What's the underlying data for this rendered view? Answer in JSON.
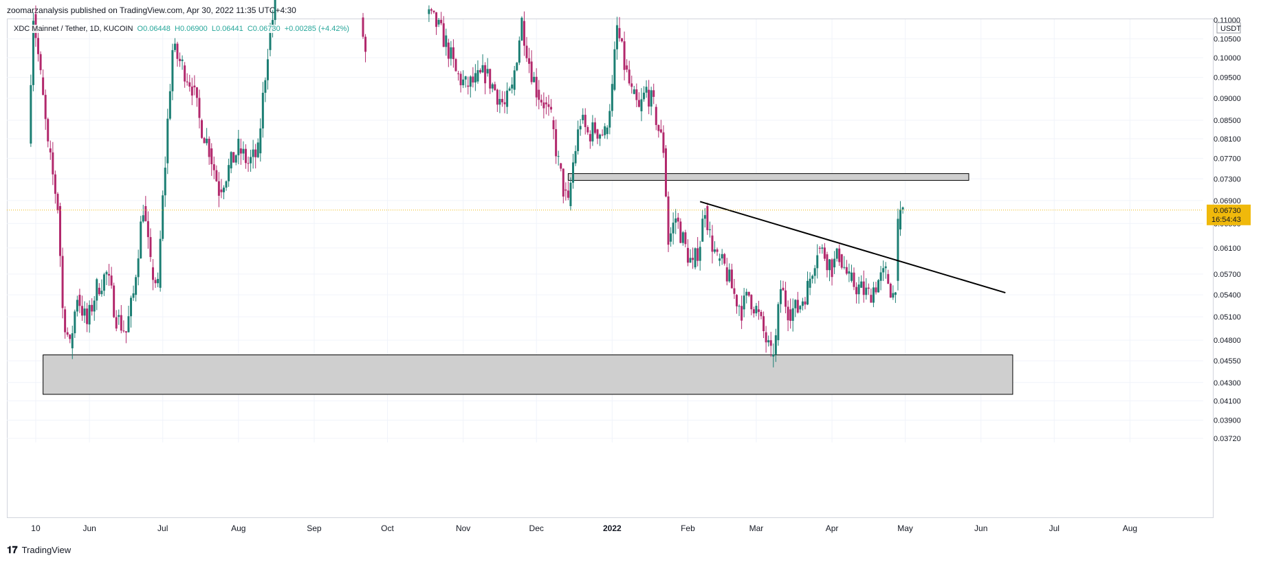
{
  "header": {
    "published_by": "zoomarzanalysis published on TradingView.com, Apr 30, 2022 11:35 UTC+4:30"
  },
  "legend": {
    "symbol": "XDC Mainnet / Tether, 1D, KUCOIN",
    "open": "O0.06448",
    "high": "H0.06900",
    "low": "L0.06441",
    "close": "C0.06730",
    "change": "+0.00285 (+4.42%)"
  },
  "footer": {
    "brand": "TradingView"
  },
  "colors": {
    "up": "#26a69a",
    "down": "#ef5350",
    "up_body": "#1b7e73",
    "down_body": "#b2286c",
    "grid": "#f0f3fa",
    "zone_fill": "#cfcfcf",
    "last_price": "#f0b90b"
  },
  "chart_data": {
    "type": "candlestick",
    "quote_unit": "USDT",
    "y_axis": {
      "scale": "log",
      "ticks": [
        "0.10500",
        "0.10000",
        "0.09500",
        "0.09000",
        "0.08500",
        "0.08100",
        "0.07700",
        "0.07300",
        "0.06900",
        "0.06500",
        "0.06100",
        "0.05700",
        "0.05400",
        "0.05100",
        "0.04800",
        "0.04550",
        "0.04300",
        "0.04100",
        "0.03900",
        "0.03720"
      ],
      "top_partial_label": "0.11000"
    },
    "x_axis": {
      "ticks": [
        "10",
        "Jun",
        "Jul",
        "Aug",
        "Sep",
        "Oct",
        "Nov",
        "Dec",
        "2022",
        "Feb",
        "Mar",
        "Apr",
        "May",
        "Jun",
        "Jul",
        "Aug"
      ],
      "bold_ticks": [
        "2022"
      ],
      "start_date": "2021-05-01",
      "end_date": "2022-08-31"
    },
    "last_price": {
      "value": "0.06730",
      "countdown": "16:54:43"
    },
    "price_series": [
      [
        "2021-05-07",
        0.08
      ],
      [
        "2021-05-09",
        0.112
      ],
      [
        "2021-05-12",
        0.095
      ],
      [
        "2021-05-15",
        0.079
      ],
      [
        "2021-05-19",
        0.068
      ],
      [
        "2021-05-21",
        0.052
      ],
      [
        "2021-05-24",
        0.047
      ],
      [
        "2021-05-27",
        0.054
      ],
      [
        "2021-05-31",
        0.05
      ],
      [
        "2021-06-04",
        0.055
      ],
      [
        "2021-06-08",
        0.057
      ],
      [
        "2021-06-12",
        0.051
      ],
      [
        "2021-06-16",
        0.049
      ],
      [
        "2021-06-19",
        0.054
      ],
      [
        "2021-06-23",
        0.068
      ],
      [
        "2021-06-26",
        0.058
      ],
      [
        "2021-06-29",
        0.055
      ],
      [
        "2021-07-02",
        0.076
      ],
      [
        "2021-07-05",
        0.102
      ],
      [
        "2021-07-09",
        0.098
      ],
      [
        "2021-07-13",
        0.093
      ],
      [
        "2021-07-16",
        0.085
      ],
      [
        "2021-07-20",
        0.079
      ],
      [
        "2021-07-24",
        0.071
      ],
      [
        "2021-07-28",
        0.075
      ],
      [
        "2021-08-01",
        0.079
      ],
      [
        "2021-08-05",
        0.076
      ],
      [
        "2021-08-09",
        0.078
      ],
      [
        "2021-08-13",
        0.102
      ],
      [
        "2021-08-16",
        0.115
      ],
      [
        "2021-09-20",
        0.111
      ],
      [
        "2021-09-22",
        0.101
      ],
      [
        "2021-10-17",
        0.112
      ],
      [
        "2021-10-21",
        0.109
      ],
      [
        "2021-10-25",
        0.104
      ],
      [
        "2021-10-29",
        0.096
      ],
      [
        "2021-11-02",
        0.093
      ],
      [
        "2021-11-06",
        0.094
      ],
      [
        "2021-11-10",
        0.096
      ],
      [
        "2021-11-14",
        0.092
      ],
      [
        "2021-11-18",
        0.088
      ],
      [
        "2021-11-21",
        0.092
      ],
      [
        "2021-11-25",
        0.11
      ],
      [
        "2021-11-28",
        0.099
      ],
      [
        "2021-12-01",
        0.092
      ],
      [
        "2021-12-04",
        0.089
      ],
      [
        "2021-12-07",
        0.085
      ],
      [
        "2021-12-10",
        0.076
      ],
      [
        "2021-12-12",
        0.071
      ],
      [
        "2021-12-14",
        0.068
      ],
      [
        "2021-12-16",
        0.076
      ],
      [
        "2021-12-19",
        0.085
      ],
      [
        "2021-12-22",
        0.082
      ],
      [
        "2021-12-25",
        0.083
      ],
      [
        "2021-12-29",
        0.082
      ],
      [
        "2022-01-01",
        0.092
      ],
      [
        "2022-01-03",
        0.108
      ],
      [
        "2022-01-06",
        0.098
      ],
      [
        "2022-01-09",
        0.091
      ],
      [
        "2022-01-12",
        0.087
      ],
      [
        "2022-01-15",
        0.092
      ],
      [
        "2022-01-18",
        0.088
      ],
      [
        "2022-01-20",
        0.083
      ],
      [
        "2022-01-22",
        0.079
      ],
      [
        "2022-01-24",
        0.062
      ],
      [
        "2022-01-27",
        0.066
      ],
      [
        "2022-01-31",
        0.061
      ],
      [
        "2022-02-03",
        0.058
      ],
      [
        "2022-02-06",
        0.062
      ],
      [
        "2022-02-08",
        0.068
      ],
      [
        "2022-02-10",
        0.063
      ],
      [
        "2022-02-13",
        0.059
      ],
      [
        "2022-02-16",
        0.058
      ],
      [
        "2022-02-20",
        0.054
      ],
      [
        "2022-02-23",
        0.052
      ],
      [
        "2022-02-26",
        0.054
      ],
      [
        "2022-03-01",
        0.052
      ],
      [
        "2022-03-04",
        0.049
      ],
      [
        "2022-03-07",
        0.046
      ],
      [
        "2022-03-09",
        0.048
      ],
      [
        "2022-03-11",
        0.055
      ],
      [
        "2022-03-14",
        0.052
      ],
      [
        "2022-03-18",
        0.052
      ],
      [
        "2022-03-22",
        0.055
      ],
      [
        "2022-03-26",
        0.061
      ],
      [
        "2022-03-29",
        0.06
      ],
      [
        "2022-04-01",
        0.058
      ],
      [
        "2022-04-04",
        0.06
      ],
      [
        "2022-04-08",
        0.056
      ],
      [
        "2022-04-12",
        0.055
      ],
      [
        "2022-04-16",
        0.054
      ],
      [
        "2022-04-20",
        0.056
      ],
      [
        "2022-04-23",
        0.057
      ],
      [
        "2022-04-26",
        0.054
      ],
      [
        "2022-04-27",
        0.056
      ],
      [
        "2022-04-28",
        0.064
      ],
      [
        "2022-04-30",
        0.0673
      ]
    ],
    "zones": [
      {
        "name": "resistance-zone",
        "x_start": "2021-12-14",
        "x_end": "2022-05-27",
        "y_low": 0.0727,
        "y_high": 0.074
      },
      {
        "name": "support-zone",
        "x_start": "2021-05-13",
        "x_end": "2022-06-14",
        "y_low": 0.0417,
        "y_high": 0.0462
      }
    ],
    "trendline": {
      "x1": "2022-02-06",
      "y1": 0.0688,
      "x2": "2022-06-11",
      "y2": 0.0543
    }
  }
}
